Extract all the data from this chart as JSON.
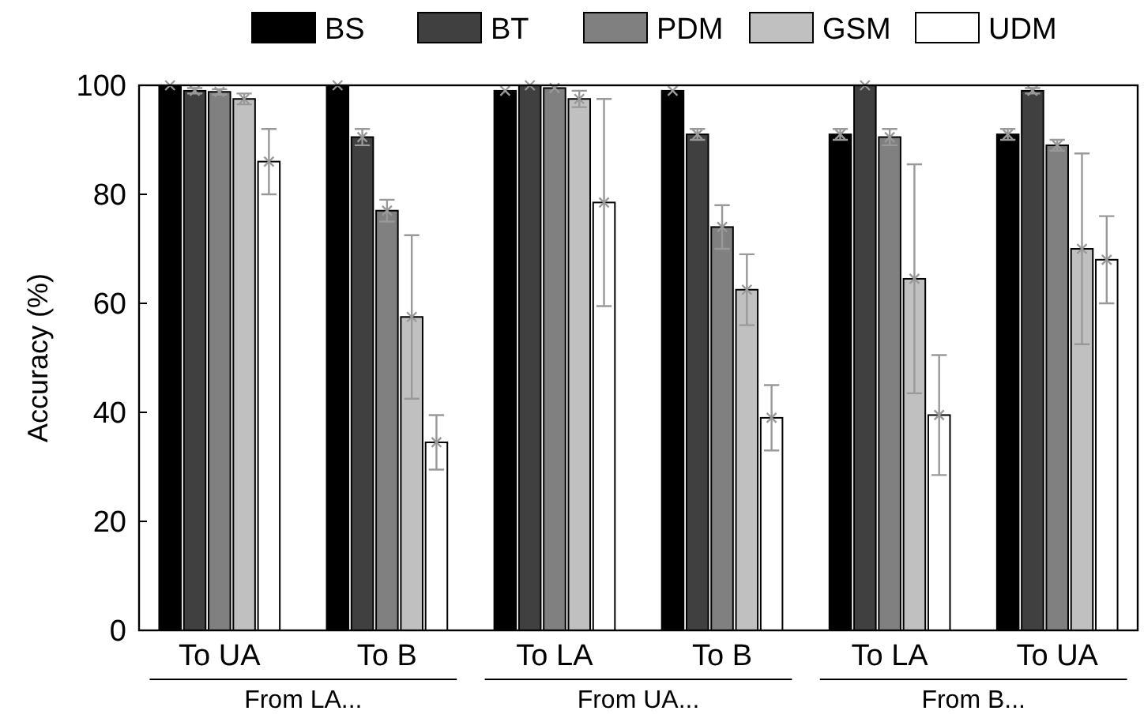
{
  "chart_data": {
    "type": "bar",
    "ylabel": "Accuracy (%)",
    "categories": [
      "To UA",
      "To B",
      "To LA",
      "To B",
      "To LA",
      "To UA"
    ],
    "series": [
      {
        "name": "BS",
        "color": "#000000",
        "values": [
          100,
          100,
          99,
          99,
          91,
          91
        ],
        "errors": [
          null,
          null,
          null,
          null,
          1,
          1
        ]
      },
      {
        "name": "BT",
        "color": "#404040",
        "values": [
          99,
          90.5,
          100,
          91,
          100,
          99
        ],
        "errors": [
          0.5,
          1.5,
          null,
          1,
          null,
          0.5
        ]
      },
      {
        "name": "PDM",
        "color": "#808080",
        "values": [
          98.8,
          77,
          99.5,
          74,
          90.5,
          89
        ],
        "errors": [
          0.5,
          2,
          null,
          4,
          1.5,
          1
        ]
      },
      {
        "name": "GSM",
        "color": "#c0c0c0",
        "values": [
          97.5,
          57.5,
          97.5,
          62.5,
          64.5,
          70
        ],
        "errors": [
          1,
          15,
          1.5,
          6.5,
          21,
          17.5
        ]
      },
      {
        "name": "UDM",
        "color": "#ffffff",
        "values": [
          86,
          34.5,
          78.5,
          39,
          39.5,
          68
        ],
        "errors": [
          6,
          5,
          19,
          6,
          11,
          8
        ]
      }
    ],
    "annotations": [
      "From LA...",
      "From UA...",
      "From B..."
    ],
    "ylim": [
      0,
      100
    ],
    "yticks": [
      0,
      20,
      40,
      60,
      80,
      100
    ],
    "legend": "top",
    "grid": false,
    "marker": "cross"
  }
}
